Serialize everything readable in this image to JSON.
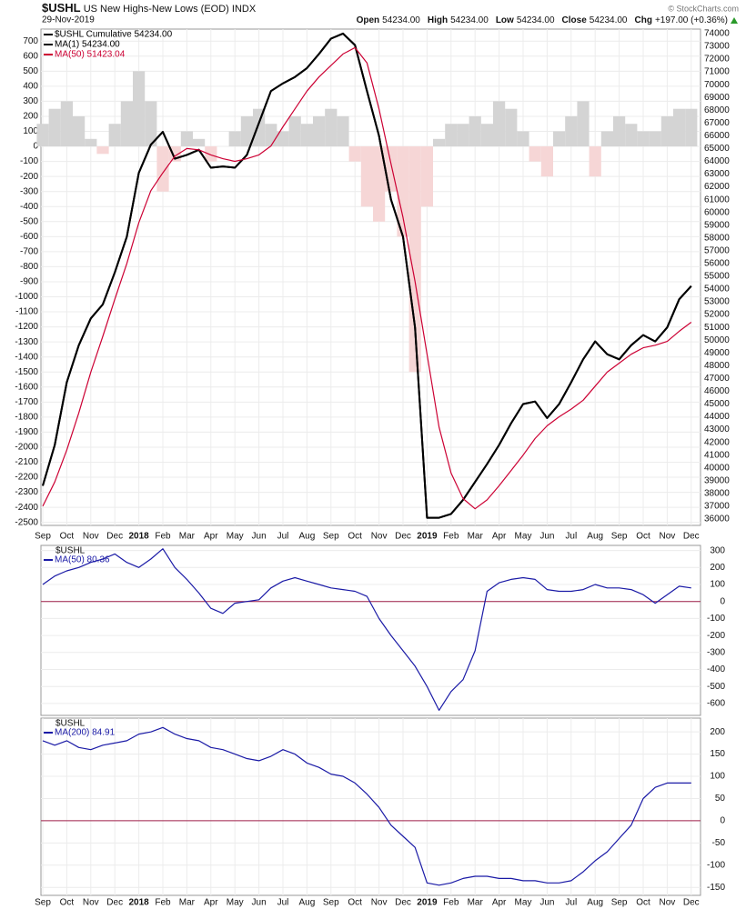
{
  "header": {
    "symbol": "$USHL",
    "description": "US New Highs-New Lows (EOD)",
    "exchange": "INDX",
    "date": "29-Nov-2019",
    "credit": "© StockCharts.com",
    "quote": [
      {
        "label": "Open",
        "value": "54234.00"
      },
      {
        "label": "High",
        "value": "54234.00"
      },
      {
        "label": "Low",
        "value": "54234.00"
      },
      {
        "label": "Close",
        "value": "54234.00"
      },
      {
        "label": "Chg",
        "value": "+197.00 (+0.36%)"
      }
    ]
  },
  "chart_data": [
    {
      "type": "line",
      "grid": true,
      "categories": [
        "Sep",
        null,
        "Oct",
        null,
        "Nov",
        null,
        "Dec",
        null,
        "2018",
        null,
        "Feb",
        null,
        "Mar",
        null,
        "Apr",
        null,
        "May",
        null,
        "Jun",
        null,
        "Jul",
        null,
        "Aug",
        null,
        "Sep",
        null,
        "Oct",
        null,
        "Nov",
        null,
        "Dec",
        null,
        "2019",
        null,
        "Feb",
        null,
        "Mar",
        null,
        "Apr",
        null,
        "May",
        null,
        "Jun",
        null,
        "Jul",
        null,
        "Aug",
        null,
        "Sep",
        null,
        "Oct",
        null,
        "Nov",
        null,
        "Dec"
      ],
      "ylim": [
        -2520,
        780
      ],
      "yticks": [
        700,
        600,
        500,
        400,
        300,
        200,
        100,
        0,
        -100,
        -200,
        -300,
        -400,
        -500,
        -600,
        -700,
        -800,
        -900,
        -1000,
        -1100,
        -1200,
        -1300,
        -1400,
        -1500,
        -1600,
        -1700,
        -1800,
        -1900,
        -2000,
        -2100,
        -2200,
        -2300,
        -2400,
        -2500
      ],
      "y2lim": [
        35500,
        74350
      ],
      "y2ticks": [
        74000,
        73000,
        72000,
        71000,
        70000,
        69000,
        68000,
        67000,
        66000,
        65000,
        64000,
        63000,
        62000,
        61000,
        60000,
        59000,
        58000,
        57000,
        56000,
        55000,
        54000,
        53000,
        52000,
        51000,
        50000,
        49000,
        48000,
        47000,
        46000,
        45000,
        44000,
        43000,
        42000,
        41000,
        40000,
        39000,
        38000,
        37000,
        36000
      ],
      "series": [
        {
          "style": "histogram",
          "color": "#d4d4d4",
          "negative_color": "#f6d6d6",
          "values": [
            150,
            250,
            300,
            200,
            50,
            -50,
            150,
            300,
            500,
            300,
            -300,
            -100,
            100,
            50,
            -100,
            0,
            100,
            200,
            250,
            150,
            100,
            200,
            150,
            200,
            250,
            200,
            -100,
            -400,
            -500,
            -300,
            -600,
            -1500,
            -400,
            50,
            150,
            150,
            200,
            150,
            300,
            250,
            100,
            -100,
            -200,
            100,
            200,
            300,
            -200,
            100,
            200,
            150,
            100,
            100,
            200,
            250,
            250
          ]
        },
        {
          "name": "$USHL Cumulative 54234.00",
          "color": "#000000",
          "axis": "y2",
          "values": [
            38600,
            41800,
            46700,
            49600,
            51700,
            52800,
            55300,
            58100,
            63100,
            65300,
            66300,
            64200,
            64500,
            64900,
            63500,
            63600,
            63500,
            64500,
            67000,
            69500,
            70100,
            70600,
            71300,
            72400,
            73600,
            74000,
            73100,
            69500,
            66000,
            61000,
            58100,
            51000,
            36100,
            36100,
            36400,
            37500,
            38900,
            40300,
            41800,
            43500,
            45000,
            45200,
            43900,
            45000,
            46700,
            48500,
            49900,
            48900,
            48500,
            49600,
            50400,
            49900,
            51000,
            53200,
            54234
          ]
        },
        {
          "name": "MA(1) 54234.00",
          "color": "#000000",
          "axis": "y2",
          "values": [
            38600,
            41800,
            46700,
            49600,
            51700,
            52800,
            55300,
            58100,
            63100,
            65300,
            66300,
            64200,
            64500,
            64900,
            63500,
            63600,
            63500,
            64500,
            67000,
            69500,
            70100,
            70600,
            71300,
            72400,
            73600,
            74000,
            73100,
            69500,
            66000,
            61000,
            58100,
            51000,
            36100,
            36100,
            36400,
            37500,
            38900,
            40300,
            41800,
            43500,
            45000,
            45200,
            43900,
            45000,
            46700,
            48500,
            49900,
            48900,
            48500,
            49600,
            50400,
            49900,
            51000,
            53200,
            54234
          ]
        },
        {
          "name": "MA(50) 51423.04",
          "color": "#cc0033",
          "axis": "y2",
          "values": [
            37000,
            38900,
            41400,
            44300,
            47500,
            50300,
            53200,
            56000,
            59200,
            61700,
            63100,
            64400,
            65000,
            64900,
            64500,
            64200,
            64000,
            64200,
            64500,
            65200,
            66700,
            68100,
            69500,
            70600,
            71500,
            72400,
            72900,
            71700,
            68100,
            63800,
            59600,
            54600,
            48900,
            43200,
            39600,
            37600,
            36800,
            37500,
            38600,
            39800,
            41000,
            42300,
            43300,
            44000,
            44600,
            45300,
            46400,
            47500,
            48200,
            48900,
            49400,
            49600,
            49900,
            50700,
            51400
          ]
        }
      ]
    },
    {
      "type": "line",
      "grid": true,
      "y_axis_side": "right",
      "legend_title": "$USHL",
      "zero_line_color": "#a0204a",
      "ylim": [
        -670,
        330
      ],
      "yticks": [
        300,
        200,
        100,
        0,
        -100,
        -200,
        -300,
        -400,
        -500,
        -600
      ],
      "series": [
        {
          "name": "MA(50) 80.36",
          "color": "#1a1aa6",
          "values": [
            100,
            150,
            180,
            200,
            230,
            250,
            280,
            230,
            200,
            250,
            310,
            200,
            130,
            50,
            -40,
            -70,
            -10,
            0,
            10,
            80,
            120,
            140,
            120,
            100,
            80,
            70,
            60,
            30,
            -100,
            -200,
            -290,
            -380,
            -500,
            -640,
            -530,
            -460,
            -290,
            60,
            110,
            130,
            140,
            130,
            70,
            60,
            60,
            70,
            100,
            80,
            80,
            70,
            40,
            -10,
            40,
            90,
            80
          ]
        }
      ]
    },
    {
      "type": "line",
      "grid": true,
      "y_axis_side": "right",
      "legend_title": "$USHL",
      "zero_line_color": "#a0204a",
      "categories": [
        "Sep",
        null,
        "Oct",
        null,
        "Nov",
        null,
        "Dec",
        null,
        "2018",
        null,
        "Feb",
        null,
        "Mar",
        null,
        "Apr",
        null,
        "May",
        null,
        "Jun",
        null,
        "Jul",
        null,
        "Aug",
        null,
        "Sep",
        null,
        "Oct",
        null,
        "Nov",
        null,
        "Dec",
        null,
        "2019",
        null,
        "Feb",
        null,
        "Mar",
        null,
        "Apr",
        null,
        "May",
        null,
        "Jun",
        null,
        "Jul",
        null,
        "Aug",
        null,
        "Sep",
        null,
        "Oct",
        null,
        "Nov",
        null,
        "Dec"
      ],
      "ylim": [
        -168,
        231
      ],
      "yticks": [
        200,
        150,
        100,
        50,
        0,
        -50,
        -100,
        -150
      ],
      "series": [
        {
          "name": "MA(200) 84.91",
          "color": "#1a1aa6",
          "values": [
            180,
            170,
            180,
            165,
            160,
            170,
            175,
            180,
            195,
            200,
            210,
            195,
            185,
            180,
            165,
            160,
            150,
            140,
            135,
            145,
            160,
            150,
            130,
            120,
            105,
            100,
            85,
            60,
            30,
            -10,
            -35,
            -60,
            -140,
            -145,
            -140,
            -130,
            -125,
            -125,
            -130,
            -130,
            -135,
            -135,
            -140,
            -140,
            -135,
            -115,
            -90,
            -70,
            -40,
            -10,
            50,
            75,
            85,
            85,
            85
          ]
        }
      ]
    }
  ]
}
